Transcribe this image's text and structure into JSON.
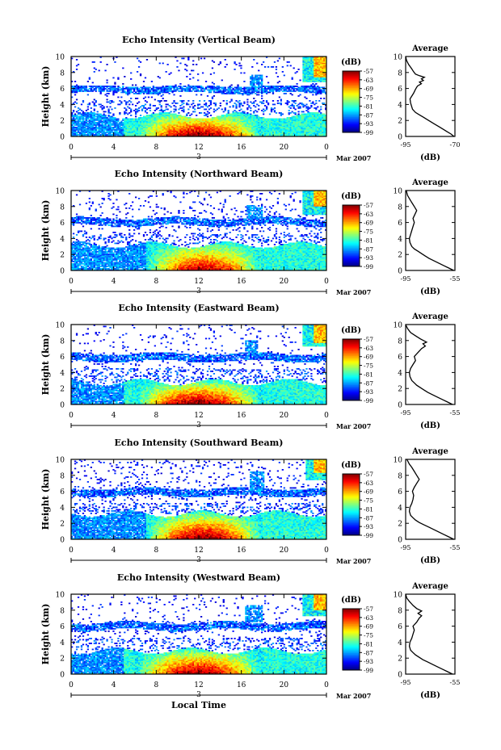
{
  "figure": {
    "xlabel_bottom": "Local Time",
    "date_label": "Mar 2007",
    "day_label": "3",
    "colorbar_unit": "(dB)",
    "average_title": "Average",
    "average_xlabel": "(dB)"
  },
  "chart_data": [
    {
      "type": "heatmap",
      "title": "Echo Intensity (Vertical Beam)",
      "ylabel": "Height (km)",
      "xlabel": "",
      "x_ticks": [
        "0",
        "4",
        "8",
        "12",
        "16",
        "20",
        "0"
      ],
      "y_ticks": [
        "0",
        "2",
        "4",
        "6",
        "8",
        "10"
      ],
      "xlim": [
        0,
        24
      ],
      "ylim": [
        0,
        10
      ],
      "colorbar": {
        "label": "(dB)",
        "ticks": [
          "-57",
          "-63",
          "-69",
          "-75",
          "-81",
          "-87",
          "-93",
          "-99"
        ],
        "range": [
          -99,
          -57
        ]
      },
      "features": {
        "low_peak": -60,
        "low_x": [
          6,
          18
        ],
        "low_top": 2.6,
        "edge_x": 5,
        "mid_layer": [
          5.2,
          6.3
        ],
        "upper_layer": 5.9,
        "blob_x": [
          16.8,
          18
        ],
        "blob_y": [
          6,
          7.7
        ],
        "top_patch_x": 21.8,
        "top_patch_y": 6.8,
        "top_hi": 7.4,
        "sparse_upper": 0.05
      },
      "average_profile": {
        "xlim": [
          -95,
          -70
        ],
        "x_ticks": [
          "-95",
          "-70"
        ],
        "y_ticks": [
          "0",
          "2",
          "4",
          "6",
          "8",
          "10"
        ],
        "points": [
          [
            -70.5,
            0
          ],
          [
            -72,
            0.3
          ],
          [
            -74,
            0.6
          ],
          [
            -76,
            0.9
          ],
          [
            -78,
            1.2
          ],
          [
            -80,
            1.5
          ],
          [
            -82,
            1.8
          ],
          [
            -84,
            2.1
          ],
          [
            -86,
            2.4
          ],
          [
            -88,
            2.7
          ],
          [
            -90,
            3.0
          ],
          [
            -91.5,
            3.4
          ],
          [
            -92,
            3.8
          ],
          [
            -92.5,
            4.2
          ],
          [
            -92.8,
            4.7
          ],
          [
            -92,
            5.0
          ],
          [
            -91,
            5.4
          ],
          [
            -90,
            5.9
          ],
          [
            -89,
            6.3
          ],
          [
            -87,
            6.6
          ],
          [
            -88,
            6.8
          ],
          [
            -86,
            7.0
          ],
          [
            -87,
            7.2
          ],
          [
            -85.5,
            7.4
          ],
          [
            -88,
            7.6
          ],
          [
            -90,
            7.8
          ],
          [
            -91,
            8.1
          ],
          [
            -92,
            8.5
          ],
          [
            -93.5,
            9.0
          ],
          [
            -94.5,
            9.5
          ],
          [
            -95,
            10
          ]
        ]
      }
    },
    {
      "type": "heatmap",
      "title": "Echo Intensity (Northward Beam)",
      "ylabel": "Height (km)",
      "xlabel": "",
      "x_ticks": [
        "0",
        "4",
        "8",
        "12",
        "16",
        "20",
        "0"
      ],
      "y_ticks": [
        "0",
        "2",
        "4",
        "6",
        "8",
        "10"
      ],
      "xlim": [
        0,
        24
      ],
      "ylim": [
        0,
        10
      ],
      "colorbar": {
        "label": "(dB)",
        "ticks": [
          "-57",
          "-63",
          "-69",
          "-75",
          "-81",
          "-87",
          "-93",
          "-99"
        ],
        "range": [
          -99,
          -57
        ]
      },
      "features": {
        "low_peak": -63,
        "low_x": [
          7,
          18
        ],
        "low_top": 3.2,
        "edge_x": 7,
        "mid_layer": [
          4.6,
          6.8
        ],
        "upper_layer": 6.1,
        "blob_x": [
          16.5,
          18
        ],
        "blob_y": [
          6.5,
          8.2
        ],
        "top_patch_x": 21.8,
        "top_patch_y": 7.0,
        "top_hi": 8.0,
        "sparse_upper": 0.07
      },
      "average_profile": {
        "xlim": [
          -95,
          -55
        ],
        "x_ticks": [
          "-95",
          "-55"
        ],
        "y_ticks": [
          "0",
          "2",
          "4",
          "6",
          "8",
          "10"
        ],
        "points": [
          [
            -56,
            0
          ],
          [
            -60,
            0.3
          ],
          [
            -64,
            0.6
          ],
          [
            -68,
            0.9
          ],
          [
            -72,
            1.2
          ],
          [
            -76,
            1.5
          ],
          [
            -79,
            1.8
          ],
          [
            -82,
            2.1
          ],
          [
            -85,
            2.4
          ],
          [
            -88,
            2.7
          ],
          [
            -90,
            3.0
          ],
          [
            -91.5,
            3.5
          ],
          [
            -92,
            4.0
          ],
          [
            -91,
            4.5
          ],
          [
            -90,
            5.0
          ],
          [
            -89,
            5.5
          ],
          [
            -88,
            6.0
          ],
          [
            -89,
            6.5
          ],
          [
            -87.5,
            7.0
          ],
          [
            -86,
            7.5
          ],
          [
            -88,
            8.0
          ],
          [
            -90,
            8.5
          ],
          [
            -92,
            9.0
          ],
          [
            -93.5,
            9.4
          ],
          [
            -94.5,
            10
          ]
        ]
      }
    },
    {
      "type": "heatmap",
      "title": "Echo Intensity (Eastward Beam)",
      "ylabel": "Height (km)",
      "xlabel": "",
      "x_ticks": [
        "0",
        "4",
        "8",
        "12",
        "16",
        "20",
        "0"
      ],
      "y_ticks": [
        "0",
        "2",
        "4",
        "6",
        "8",
        "10"
      ],
      "xlim": [
        0,
        24
      ],
      "ylim": [
        0,
        10
      ],
      "colorbar": {
        "label": "(dB)",
        "ticks": [
          "-57",
          "-63",
          "-69",
          "-75",
          "-81",
          "-87",
          "-93",
          "-99"
        ],
        "range": [
          -99,
          -57
        ]
      },
      "features": {
        "low_peak": -60,
        "low_x": [
          6,
          18
        ],
        "low_top": 2.8,
        "edge_x": 5,
        "mid_layer": [
          5.0,
          6.5
        ],
        "upper_layer": 5.9,
        "blob_x": [
          16.3,
          17.5
        ],
        "blob_y": [
          6,
          8
        ],
        "top_patch_x": 21.8,
        "top_patch_y": 7.2,
        "top_hi": 7.8,
        "sparse_upper": 0.04
      },
      "average_profile": {
        "xlim": [
          -95,
          -55
        ],
        "x_ticks": [
          "-95",
          "-55"
        ],
        "y_ticks": [
          "0",
          "2",
          "4",
          "6",
          "8",
          "10"
        ],
        "points": [
          [
            -57,
            0
          ],
          [
            -61,
            0.3
          ],
          [
            -65,
            0.6
          ],
          [
            -69,
            0.9
          ],
          [
            -73,
            1.2
          ],
          [
            -77,
            1.5
          ],
          [
            -80,
            1.8
          ],
          [
            -83,
            2.1
          ],
          [
            -86,
            2.4
          ],
          [
            -88,
            2.7
          ],
          [
            -90,
            3.0
          ],
          [
            -91.5,
            3.5
          ],
          [
            -92,
            4.0
          ],
          [
            -91,
            4.5
          ],
          [
            -89,
            5.0
          ],
          [
            -87,
            5.5
          ],
          [
            -88,
            6.0
          ],
          [
            -85,
            6.5
          ],
          [
            -82,
            7.0
          ],
          [
            -79,
            7.3
          ],
          [
            -81,
            7.6
          ],
          [
            -78,
            7.8
          ],
          [
            -83,
            8.2
          ],
          [
            -87,
            8.6
          ],
          [
            -91,
            9.0
          ],
          [
            -93.5,
            9.5
          ],
          [
            -95,
            10
          ]
        ]
      }
    },
    {
      "type": "heatmap",
      "title": "Echo Intensity (Southward Beam)",
      "ylabel": "Height (km)",
      "xlabel": "",
      "x_ticks": [
        "0",
        "4",
        "8",
        "12",
        "16",
        "20",
        "0"
      ],
      "y_ticks": [
        "0",
        "2",
        "4",
        "6",
        "8",
        "10"
      ],
      "xlim": [
        0,
        24
      ],
      "ylim": [
        0,
        10
      ],
      "colorbar": {
        "label": "(dB)",
        "ticks": [
          "-57",
          "-63",
          "-69",
          "-75",
          "-81",
          "-87",
          "-93",
          "-99"
        ],
        "range": [
          -99,
          -57
        ]
      },
      "features": {
        "low_peak": -60,
        "low_x": [
          7,
          18
        ],
        "low_top": 3.2,
        "edge_x": 7,
        "mid_layer": [
          4.8,
          6.8
        ],
        "upper_layer": 5.9,
        "blob_x": [
          16.8,
          18.2
        ],
        "blob_y": [
          6,
          8.5
        ],
        "top_patch_x": 22.0,
        "top_patch_y": 7.4,
        "top_hi": 8.4,
        "sparse_upper": 0.08
      },
      "average_profile": {
        "xlim": [
          -95,
          -55
        ],
        "x_ticks": [
          "-95",
          "-55"
        ],
        "y_ticks": [
          "0",
          "2",
          "4",
          "6",
          "8",
          "10"
        ],
        "points": [
          [
            -56,
            0
          ],
          [
            -60,
            0.3
          ],
          [
            -64,
            0.6
          ],
          [
            -68,
            0.9
          ],
          [
            -72,
            1.2
          ],
          [
            -76,
            1.5
          ],
          [
            -80,
            1.8
          ],
          [
            -84,
            2.1
          ],
          [
            -87,
            2.4
          ],
          [
            -89,
            2.7
          ],
          [
            -91,
            3.0
          ],
          [
            -92,
            3.5
          ],
          [
            -91.5,
            4.0
          ],
          [
            -90,
            4.5
          ],
          [
            -89,
            5.0
          ],
          [
            -88.5,
            5.5
          ],
          [
            -89.5,
            6.0
          ],
          [
            -88,
            6.5
          ],
          [
            -86,
            7.0
          ],
          [
            -84,
            7.5
          ],
          [
            -86,
            8.0
          ],
          [
            -88,
            8.5
          ],
          [
            -90,
            9.0
          ],
          [
            -92,
            9.4
          ],
          [
            -94,
            10
          ]
        ]
      }
    },
    {
      "type": "heatmap",
      "title": "Echo Intensity (Westward Beam)",
      "ylabel": "Height (km)",
      "xlabel": "Local Time",
      "x_ticks": [
        "0",
        "4",
        "8",
        "12",
        "16",
        "20",
        "0"
      ],
      "y_ticks": [
        "0",
        "2",
        "4",
        "6",
        "8",
        "10"
      ],
      "xlim": [
        0,
        24
      ],
      "ylim": [
        0,
        10
      ],
      "colorbar": {
        "label": "(dB)",
        "ticks": [
          "-57",
          "-63",
          "-69",
          "-75",
          "-81",
          "-87",
          "-93",
          "-99"
        ],
        "range": [
          -99,
          -57
        ]
      },
      "features": {
        "low_peak": -61,
        "low_x": [
          6,
          18
        ],
        "low_top": 2.9,
        "edge_x": 5,
        "mid_layer": [
          5.2,
          6.6
        ],
        "upper_layer": 6.0,
        "blob_x": [
          16.3,
          18
        ],
        "blob_y": [
          6.5,
          8.6
        ],
        "top_patch_x": 21.8,
        "top_patch_y": 7.2,
        "top_hi": 8.0,
        "sparse_upper": 0.05
      },
      "average_profile": {
        "xlim": [
          -95,
          -55
        ],
        "x_ticks": [
          "-95",
          "-55"
        ],
        "y_ticks": [
          "0",
          "2",
          "4",
          "6",
          "8",
          "10"
        ],
        "points": [
          [
            -57,
            0
          ],
          [
            -61,
            0.3
          ],
          [
            -65,
            0.6
          ],
          [
            -69,
            0.9
          ],
          [
            -73,
            1.2
          ],
          [
            -77,
            1.5
          ],
          [
            -81,
            1.8
          ],
          [
            -84,
            2.1
          ],
          [
            -87,
            2.4
          ],
          [
            -89,
            2.7
          ],
          [
            -91,
            3.0
          ],
          [
            -92,
            3.5
          ],
          [
            -91.5,
            4.0
          ],
          [
            -90,
            4.5
          ],
          [
            -89,
            5.0
          ],
          [
            -88,
            5.5
          ],
          [
            -89,
            6.0
          ],
          [
            -86,
            6.5
          ],
          [
            -84,
            7.0
          ],
          [
            -82,
            7.3
          ],
          [
            -85,
            7.6
          ],
          [
            -82,
            7.9
          ],
          [
            -86,
            8.2
          ],
          [
            -89,
            8.6
          ],
          [
            -92,
            9.1
          ],
          [
            -94,
            9.5
          ],
          [
            -95,
            10
          ]
        ]
      }
    }
  ]
}
